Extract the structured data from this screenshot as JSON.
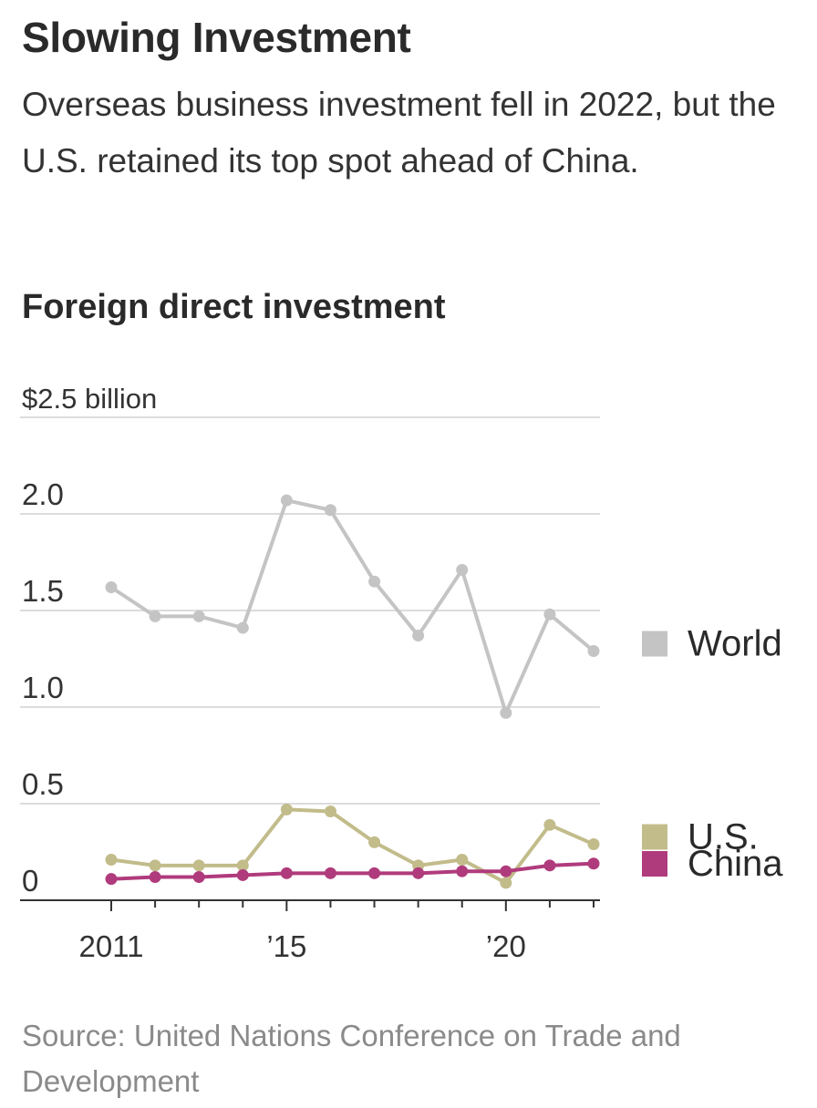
{
  "header": {
    "title": "Slowing Investment",
    "subtitle": "Overseas business investment fell in 2022, but the U.S. retained its top spot ahead of China."
  },
  "chart_heading": "Foreign direct investment",
  "source": "Source: United Nations Conference on Trade and Development",
  "chart_data": {
    "type": "line",
    "title": "Foreign direct investment",
    "ylabel": "",
    "xlabel": "",
    "x": [
      2011,
      2012,
      2013,
      2014,
      2015,
      2016,
      2017,
      2018,
      2019,
      2020,
      2021,
      2022
    ],
    "ylim": [
      0,
      2.5
    ],
    "ytick_values": [
      0,
      0.5,
      1.0,
      1.5,
      2.0,
      2.5
    ],
    "ytick_labels": [
      "0",
      "0.5",
      "1.0",
      "1.5",
      "2.0",
      "$2.5 billion"
    ],
    "xtick_values": [
      2011,
      2015,
      2020
    ],
    "xtick_labels": [
      "2011",
      "’15",
      "’20"
    ],
    "grid": true,
    "legend": "right, labels placed next to line ends",
    "series": [
      {
        "name": "World",
        "color": "#c4c4c4",
        "values": [
          1.62,
          1.47,
          1.47,
          1.41,
          2.07,
          2.02,
          1.65,
          1.37,
          1.71,
          0.97,
          1.48,
          1.29
        ]
      },
      {
        "name": "U.S.",
        "color": "#c2bc8b",
        "values": [
          0.21,
          0.18,
          0.18,
          0.18,
          0.47,
          0.46,
          0.3,
          0.18,
          0.21,
          0.09,
          0.39,
          0.29
        ]
      },
      {
        "name": "China",
        "color": "#b03b7c",
        "values": [
          0.11,
          0.12,
          0.12,
          0.13,
          0.14,
          0.14,
          0.14,
          0.14,
          0.15,
          0.15,
          0.18,
          0.19
        ]
      }
    ]
  }
}
